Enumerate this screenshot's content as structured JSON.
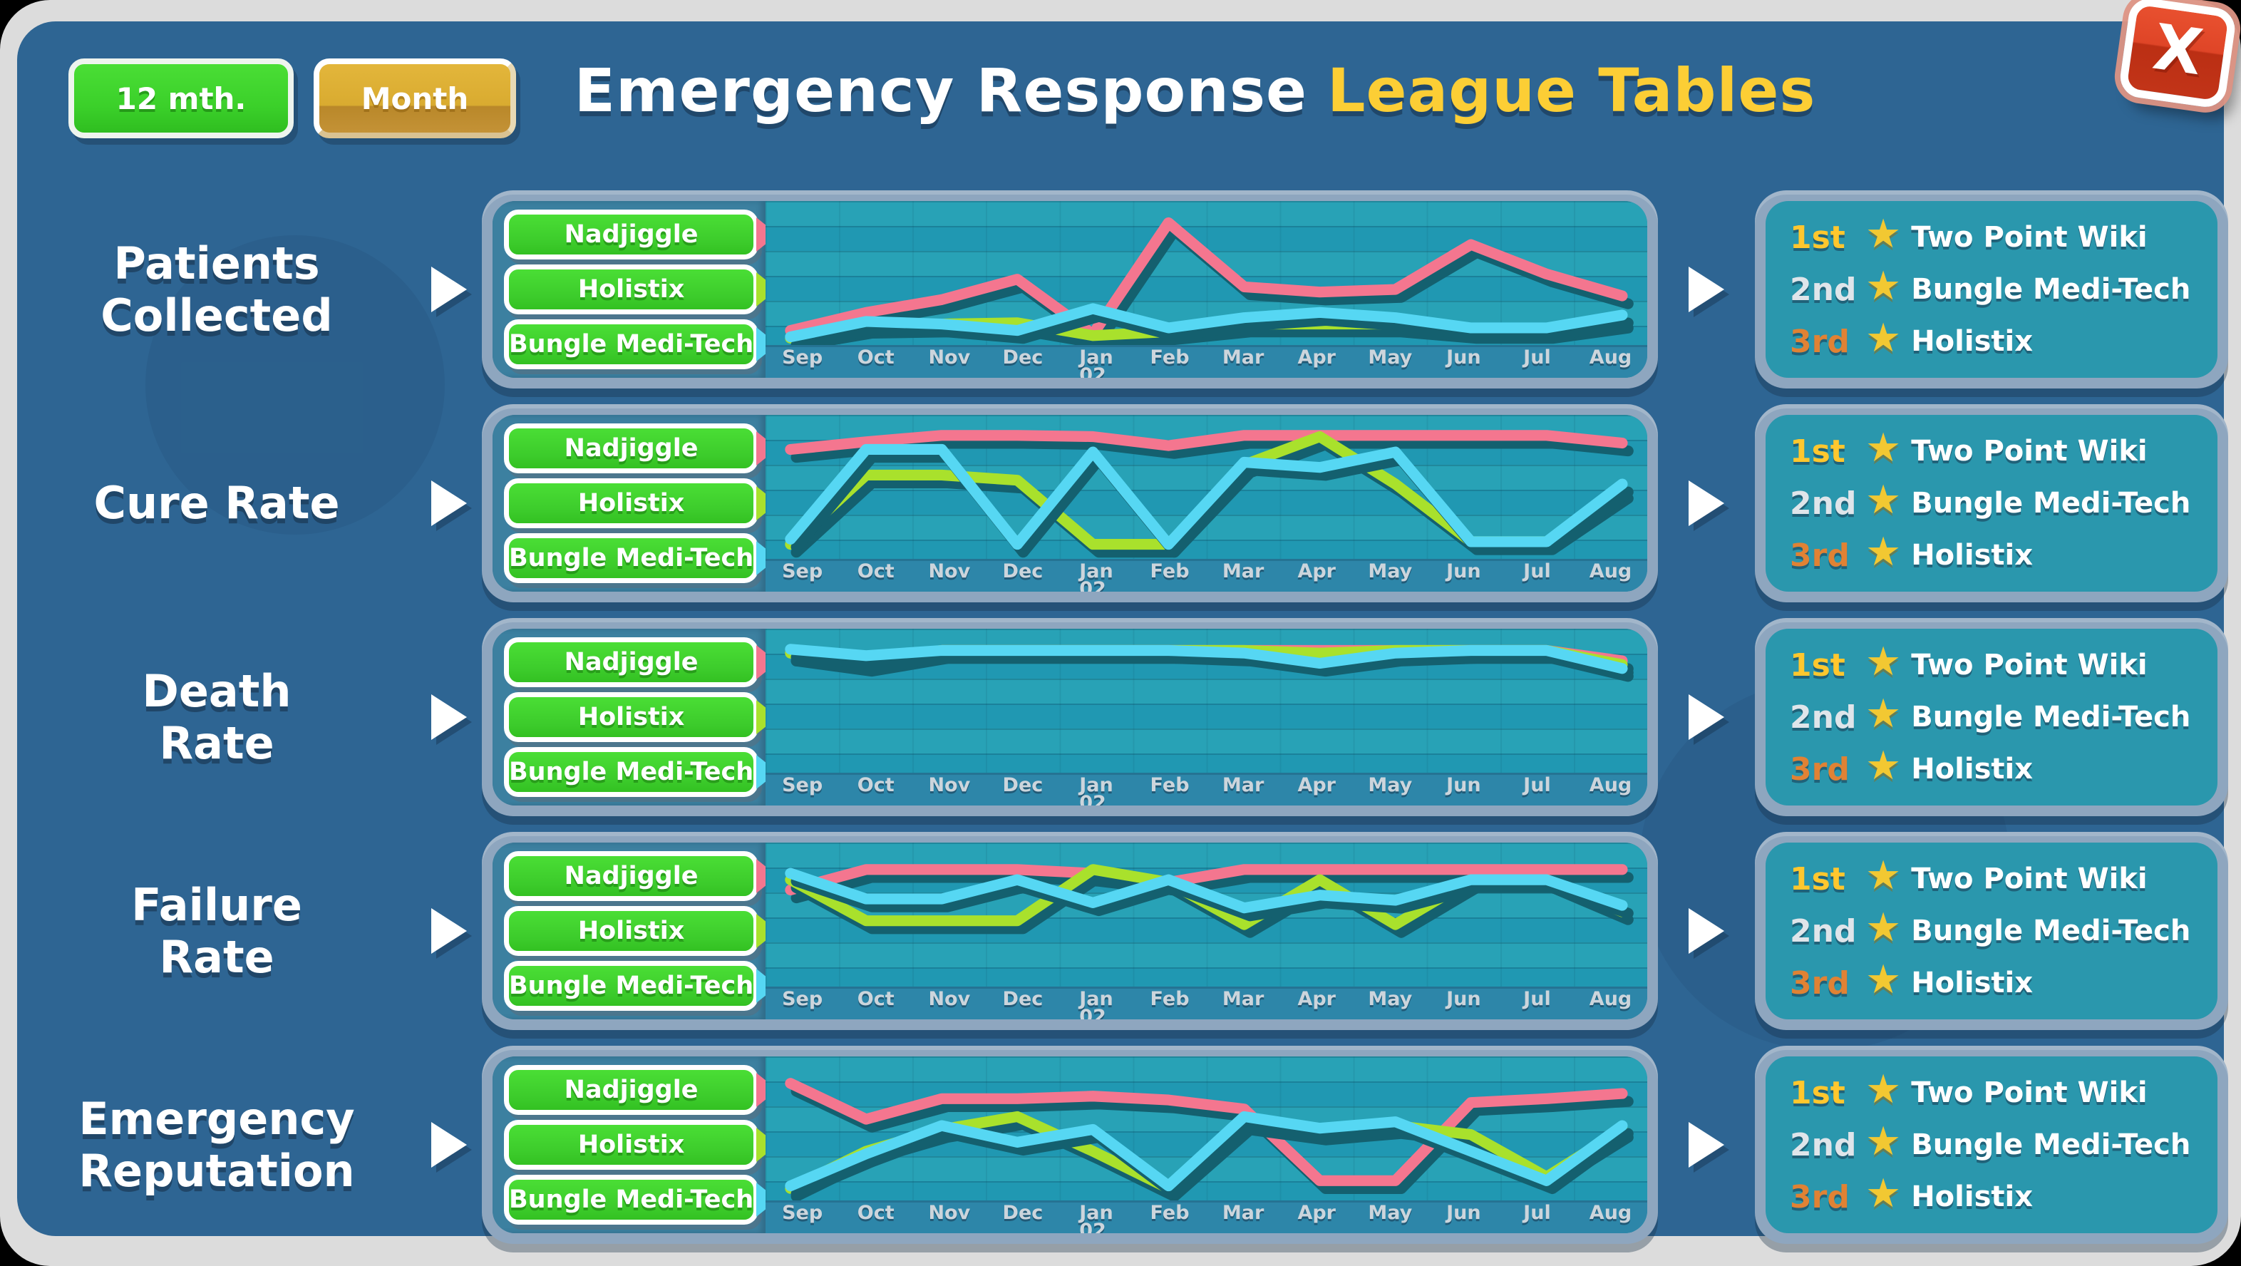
{
  "window": {
    "close_label": "X"
  },
  "header": {
    "range_button": "12 mth.",
    "period_button": "Month",
    "title_white": "Emergency Response",
    "title_yellow": "League Tables"
  },
  "colors": {
    "panel_blue": "#2e6593",
    "card_border": "#8ea6bf",
    "chart_bg": "#28a2b6",
    "legend_button_green": "#3ccb2b",
    "line_shadow": "#14606f",
    "rank_first": "#ffc72e",
    "rank_second": "#dfe5ea",
    "rank_third": "#e08234",
    "star_gold": "#f2c832"
  },
  "teams": [
    {
      "name": "Nadjiggle",
      "color": "#f4768f"
    },
    {
      "name": "Holistix",
      "color": "#a9e12c"
    },
    {
      "name": "Bungle Medi-Tech",
      "color": "#56d7f3"
    }
  ],
  "months": [
    [
      "Sep"
    ],
    [
      "Oct"
    ],
    [
      "Nov"
    ],
    [
      "Dec"
    ],
    [
      "Jan",
      "02"
    ],
    [
      "Feb"
    ],
    [
      "Mar"
    ],
    [
      "Apr"
    ],
    [
      "May"
    ],
    [
      "Jun"
    ],
    [
      "Jul"
    ],
    [
      "Aug"
    ]
  ],
  "rankings": [
    {
      "rank": "1st",
      "color": "#ffc72e",
      "name": "Two Point Wiki"
    },
    {
      "rank": "2nd",
      "color": "#dfe5ea",
      "name": "Bungle Medi-Tech"
    },
    {
      "rank": "3rd",
      "color": "#e08234",
      "name": "Holistix"
    }
  ],
  "rows": [
    {
      "label_lines": [
        "Patients",
        "Collected"
      ],
      "chart_data": {
        "type": "line",
        "categories": [
          "Sep",
          "Oct",
          "Nov",
          "Dec",
          "Jan 02",
          "Feb",
          "Mar",
          "Apr",
          "May",
          "Jun",
          "Jul",
          "Aug"
        ],
        "ylim": [
          0,
          100
        ],
        "series": [
          {
            "name": "Nadjiggle",
            "values": [
              8,
              22,
              32,
              48,
              5,
              92,
              42,
              38,
              40,
              75,
              52,
              35
            ]
          },
          {
            "name": "Holistix",
            "values": [
              2,
              12,
              13,
              14,
              4,
              7,
              13,
              13,
              13,
              8,
              8,
              16
            ]
          },
          {
            "name": "Bungle Medi-Tech",
            "values": [
              3,
              15,
              13,
              8,
              25,
              10,
              18,
              22,
              18,
              10,
              10,
              20
            ]
          }
        ]
      }
    },
    {
      "label_lines": [
        "Cure Rate"
      ],
      "chart_data": {
        "type": "line",
        "categories": [
          "Sep",
          "Oct",
          "Nov",
          "Dec",
          "Jan 02",
          "Feb",
          "Mar",
          "Apr",
          "May",
          "Jun",
          "Jul",
          "Aug"
        ],
        "ylim": [
          0,
          100
        ],
        "series": [
          {
            "name": "Nadjiggle",
            "values": [
              82,
              88,
              93,
              93,
              92,
              85,
              93,
              93,
              93,
              93,
              93,
              87
            ]
          },
          {
            "name": "Holistix",
            "values": [
              8,
              62,
              62,
              58,
              8,
              8,
              70,
              92,
              55,
              10,
              10,
              50
            ]
          },
          {
            "name": "Bungle Medi-Tech",
            "values": [
              12,
              82,
              82,
              8,
              80,
              8,
              72,
              68,
              80,
              10,
              10,
              55
            ]
          }
        ]
      }
    },
    {
      "label_lines": [
        "Death",
        "Rate"
      ],
      "chart_data": {
        "type": "line",
        "categories": [
          "Sep",
          "Oct",
          "Nov",
          "Dec",
          "Jan 02",
          "Feb",
          "Mar",
          "Apr",
          "May",
          "Jun",
          "Jul",
          "Aug"
        ],
        "ylim": [
          0,
          100
        ],
        "series": [
          {
            "name": "Nadjiggle",
            "values": [
              90,
              82,
              92,
              92,
              92,
              92,
              92,
              92,
              92,
              92,
              92,
              84
            ]
          },
          {
            "name": "Holistix",
            "values": [
              90,
              86,
              92,
              92,
              92,
              92,
              92,
              90,
              92,
              92,
              92,
              81
            ]
          },
          {
            "name": "Bungle Medi-Tech",
            "values": [
              93,
              88,
              92,
              92,
              92,
              92,
              90,
              82,
              90,
              92,
              92,
              78
            ]
          }
        ]
      }
    },
    {
      "label_lines": [
        "Failure",
        "Rate"
      ],
      "chart_data": {
        "type": "line",
        "categories": [
          "Sep",
          "Oct",
          "Nov",
          "Dec",
          "Jan 02",
          "Feb",
          "Mar",
          "Apr",
          "May",
          "Jun",
          "Jul",
          "Aug"
        ],
        "ylim": [
          0,
          100
        ],
        "series": [
          {
            "name": "Nadjiggle",
            "values": [
              72,
              88,
              88,
              88,
              85,
              78,
              88,
              88,
              88,
              88,
              88,
              88
            ]
          },
          {
            "name": "Holistix",
            "values": [
              80,
              48,
              48,
              48,
              88,
              78,
              45,
              80,
              45,
              80,
              80,
              55
            ]
          },
          {
            "name": "Bungle Medi-Tech",
            "values": [
              85,
              65,
              65,
              80,
              62,
              80,
              58,
              68,
              64,
              80,
              80,
              60
            ]
          }
        ]
      }
    },
    {
      "label_lines": [
        "Emergency",
        "Reputation"
      ],
      "chart_data": {
        "type": "line",
        "categories": [
          "Sep",
          "Oct",
          "Nov",
          "Dec",
          "Jan 02",
          "Feb",
          "Mar",
          "Apr",
          "May",
          "Jun",
          "Jul",
          "Aug"
        ],
        "ylim": [
          0,
          100
        ],
        "series": [
          {
            "name": "Nadjiggle",
            "values": [
              88,
              60,
              76,
              76,
              78,
              75,
              68,
              12,
              12,
              73,
              76,
              80
            ]
          },
          {
            "name": "Holistix",
            "values": [
              6,
              35,
              52,
              62,
              35,
              6,
              58,
              50,
              55,
              48,
              15,
              52
            ]
          },
          {
            "name": "Bungle Medi-Tech",
            "values": [
              8,
              33,
              55,
              42,
              52,
              8,
              62,
              53,
              58,
              35,
              12,
              55
            ]
          }
        ]
      }
    }
  ]
}
